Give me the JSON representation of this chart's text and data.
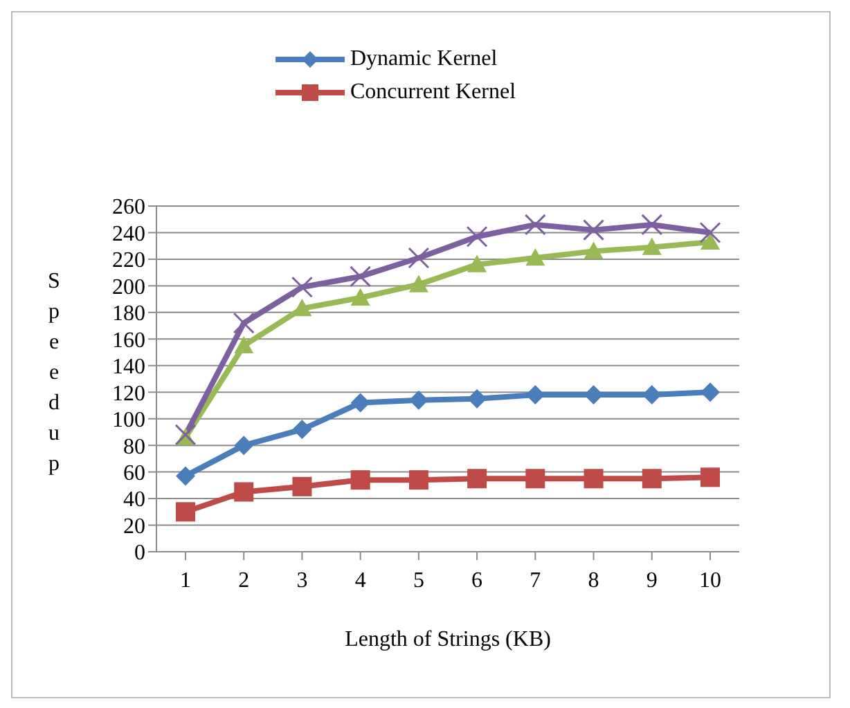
{
  "chart_data": {
    "type": "line",
    "xlabel": "Length of Strings (KB)",
    "ylabel": "Speedup",
    "categories": [
      "1",
      "2",
      "3",
      "4",
      "5",
      "6",
      "7",
      "8",
      "9",
      "10"
    ],
    "series": [
      {
        "name": "Dynamic Kernel",
        "color": "#4a7ebb",
        "marker": "diamond",
        "values": [
          57,
          80,
          92,
          112,
          114,
          115,
          118,
          118,
          118,
          120
        ]
      },
      {
        "name": "Concurrent Kernel",
        "color": "#be4b48",
        "marker": "square",
        "values": [
          30,
          45,
          49,
          54,
          54,
          55,
          55,
          55,
          55,
          56
        ]
      },
      {
        "color": "#98b954",
        "marker": "triangle",
        "values": [
          86,
          155,
          183,
          191,
          201,
          216,
          221,
          226,
          229,
          233
        ]
      },
      {
        "color": "#7d60a0",
        "marker": "cross",
        "values": [
          88,
          172,
          199,
          207,
          221,
          237,
          246,
          242,
          246,
          240
        ]
      }
    ],
    "ylim": [
      0,
      260
    ],
    "yticks": [
      0,
      20,
      40,
      60,
      80,
      100,
      120,
      140,
      160,
      180,
      200,
      220,
      240,
      260
    ],
    "grid": "y",
    "legend": "top",
    "line_style": "solid"
  }
}
